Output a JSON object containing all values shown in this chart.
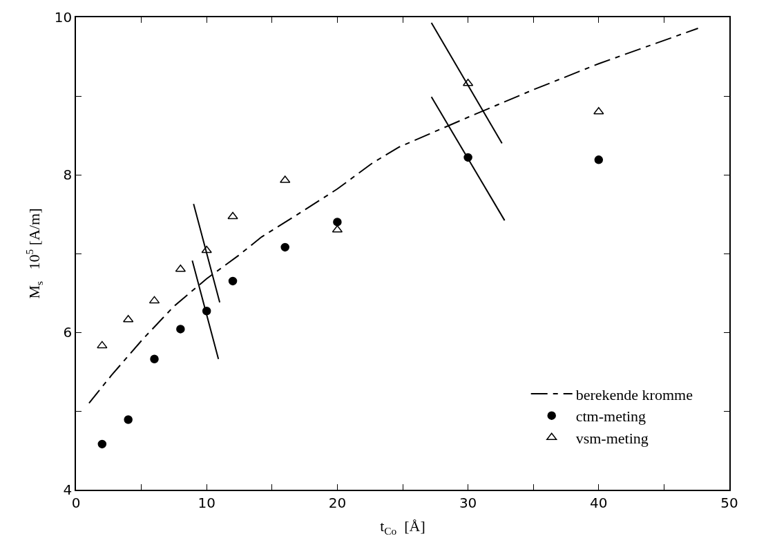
{
  "chart_data": {
    "type": "scatter",
    "xlabel": "t$_{Co}$  [Å]",
    "ylabel": "M$_{s}$   10$^{5}$ [A/m]",
    "xlim": [
      0,
      50
    ],
    "ylim": [
      4,
      10
    ],
    "xticks": [
      0,
      {
        "value": 5,
        "label": null
      },
      10,
      {
        "value": 15,
        "label": null
      },
      20,
      {
        "value": 25,
        "label": null
      },
      30,
      {
        "value": 35,
        "label": null
      },
      40,
      {
        "value": 45,
        "label": null
      },
      50
    ],
    "yticks": [
      4,
      {
        "value": 5,
        "label": null
      },
      6,
      {
        "value": 7,
        "label": null
      },
      8,
      {
        "value": 9,
        "label": null
      },
      10
    ],
    "legend": "bottom right",
    "series": [
      {
        "name": "berekende kromme",
        "type": "line",
        "line_style": "dashed",
        "marker": "none",
        "color": "#000000",
        "x": [
          1,
          2.7,
          5.1,
          7.5,
          10,
          12.4,
          14.2,
          16.9,
          20,
          22.7,
          24.7,
          30,
          35,
          40,
          47.6
        ],
        "values": [
          5.1,
          5.45,
          5.91,
          6.33,
          6.68,
          6.97,
          7.21,
          7.49,
          7.82,
          8.15,
          8.35,
          8.73,
          9.08,
          9.41,
          9.86
        ]
      },
      {
        "name": "ctm-meting",
        "marker": "circle",
        "color": "#000000",
        "x": [
          2,
          4,
          6,
          8,
          10,
          12,
          16,
          20,
          30,
          40
        ],
        "values": [
          4.58,
          4.89,
          5.66,
          6.04,
          6.27,
          6.65,
          7.08,
          7.4,
          8.22,
          8.19
        ]
      },
      {
        "name": "vsm-meting",
        "marker": "triangle",
        "color": "#000000",
        "x": [
          2,
          4,
          6,
          8,
          10,
          12,
          16,
          20,
          30,
          40
        ],
        "values": [
          5.83,
          6.16,
          6.4,
          6.8,
          7.04,
          7.47,
          7.93,
          7.3,
          9.16,
          8.8
        ]
      },
      {
        "type": "line",
        "line_style": "solid",
        "marker": "none",
        "color": "#000000",
        "x": [
          9.0,
          11.0
        ],
        "values": [
          7.63,
          6.38
        ]
      },
      {
        "type": "line",
        "line_style": "solid",
        "marker": "none",
        "color": "#000000",
        "x": [
          8.9,
          10.9
        ],
        "values": [
          6.91,
          5.66
        ]
      },
      {
        "type": "line",
        "line_style": "solid",
        "marker": "none",
        "color": "#000000",
        "x": [
          27.2,
          32.6
        ],
        "values": [
          9.93,
          8.4
        ]
      },
      {
        "type": "line",
        "line_style": "solid",
        "marker": "none",
        "color": "#000000",
        "x": [
          27.2,
          32.8
        ],
        "values": [
          8.99,
          7.42
        ]
      }
    ]
  }
}
